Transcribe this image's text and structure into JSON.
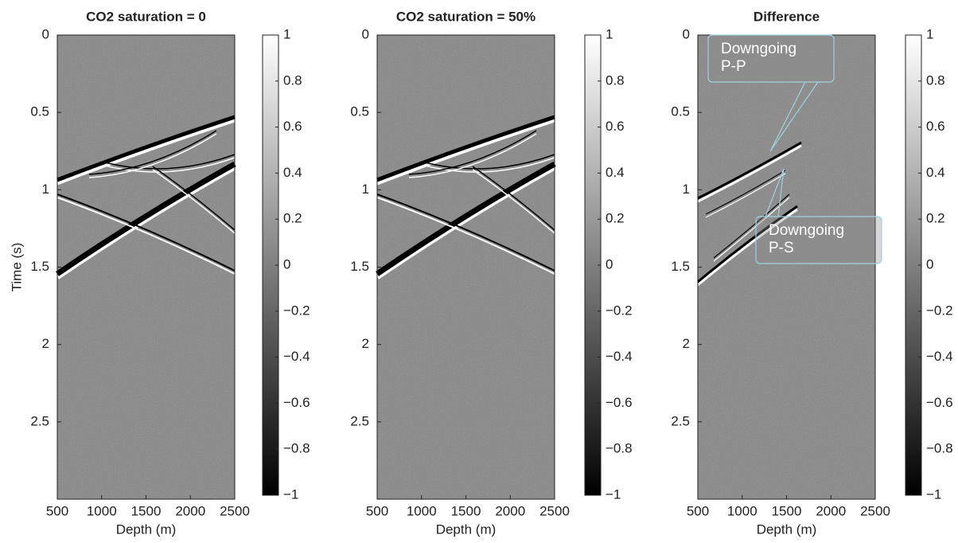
{
  "chart_data": [
    {
      "type": "heatmap",
      "title": "CO2 saturation = 0",
      "xlabel": "Depth (m)",
      "ylabel": "Time (s)",
      "xlim": [
        500,
        2500
      ],
      "xticks": [
        500,
        1000,
        1500,
        2000,
        2500
      ],
      "ylim": [
        0,
        3
      ],
      "y_inverted": true,
      "yticks": [
        0,
        0.5,
        1,
        1.5,
        2,
        2.5
      ],
      "clim": [
        -1,
        1
      ],
      "cticks": [
        1,
        0.8,
        0.6,
        0.4,
        0.2,
        0,
        {
          "value": -0.2,
          "label": "−0.2"
        },
        {
          "value": -0.4,
          "label": "−0.4"
        },
        {
          "value": -0.6,
          "label": "−0.6"
        },
        {
          "value": -0.8,
          "label": "−0.8"
        },
        {
          "value": -1,
          "label": "−1"
        }
      ]
    },
    {
      "type": "heatmap",
      "title": "CO2 saturation = 50%",
      "xlabel": "Depth (m)",
      "xlim": [
        500,
        2500
      ],
      "xticks": [
        500,
        1000,
        1500,
        2000,
        2500
      ],
      "ylim": [
        0,
        3
      ],
      "y_inverted": true,
      "yticks": [
        0,
        0.5,
        1,
        1.5,
        2,
        2.5
      ],
      "clim": [
        -1,
        1
      ],
      "cticks": [
        1,
        0.8,
        0.6,
        0.4,
        0.2,
        0,
        {
          "value": -0.2,
          "label": "−0.2"
        },
        {
          "value": -0.4,
          "label": "−0.4"
        },
        {
          "value": -0.6,
          "label": "−0.6"
        },
        {
          "value": -0.8,
          "label": "−0.8"
        },
        {
          "value": -1,
          "label": "−1"
        }
      ]
    },
    {
      "type": "heatmap",
      "title": "Difference",
      "xlabel": "Depth (m)",
      "xlim": [
        500,
        2500
      ],
      "xticks": [
        500,
        1000,
        1500,
        2000,
        2500
      ],
      "ylim": [
        0,
        3
      ],
      "y_inverted": true,
      "yticks": [
        0,
        0.5,
        1,
        1.5,
        2,
        2.5
      ],
      "clim": [
        -1,
        1
      ],
      "cticks": [
        1,
        0.8,
        0.6,
        0.4,
        0.2,
        0,
        {
          "value": -0.2,
          "label": "−0.2"
        },
        {
          "value": -0.4,
          "label": "−0.4"
        },
        {
          "value": -0.6,
          "label": "−0.6"
        },
        {
          "value": -0.8,
          "label": "−0.8"
        },
        {
          "value": -1,
          "label": "−1"
        }
      ],
      "annotations": [
        {
          "text": [
            "Downgoing",
            "P-P"
          ]
        },
        {
          "text": [
            "Downgoing",
            "P-S"
          ]
        }
      ]
    }
  ]
}
